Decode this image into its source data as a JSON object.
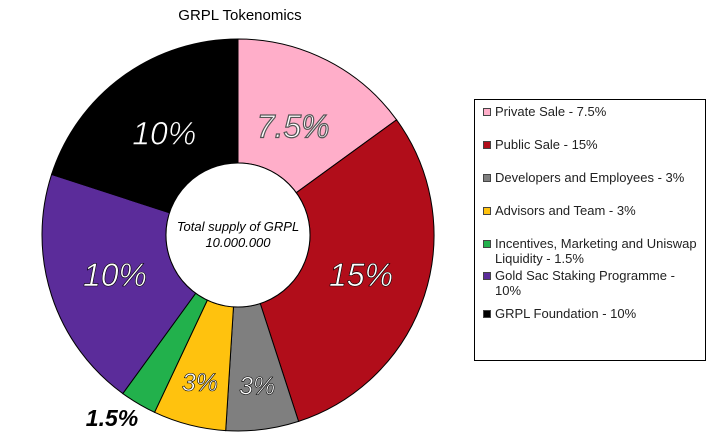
{
  "chart_data": {
    "type": "pie",
    "donut": true,
    "title": "GRPL Tokenomics",
    "center_label": [
      "Total supply of GRPL",
      "10.000.000"
    ],
    "legend_position": "right",
    "slices": [
      {
        "legend": "Private Sale - 7.5%",
        "value": 7.5,
        "data_label": "7.5%",
        "color": "#ffaec9"
      },
      {
        "legend": "Public Sale - 15%",
        "value": 15,
        "data_label": "15%",
        "color": "#b10d1a"
      },
      {
        "legend": "Developers and Employees - 3%",
        "value": 3,
        "data_label": "3%",
        "color": "#7f7f7f"
      },
      {
        "legend": "Advisors and Team - 3%",
        "value": 3,
        "data_label": "3%",
        "color": "#ffc20e"
      },
      {
        "legend": "Incentives, Marketing and Uniswap Liquidity - 1.5%",
        "value": 1.5,
        "data_label": "1.5%",
        "color": "#22b14c"
      },
      {
        "legend": "Gold Sac Staking Programme - 10%",
        "value": 10,
        "data_label": "10%",
        "color": "#5b2c9a"
      },
      {
        "legend": "GRPL Foundation - 10%",
        "value": 10,
        "data_label": "10%",
        "color": "#000000"
      }
    ]
  }
}
